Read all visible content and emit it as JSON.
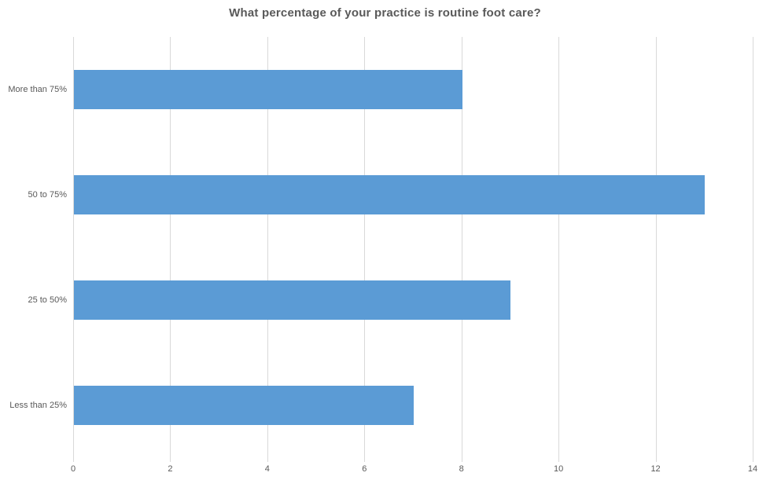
{
  "colors": {
    "bar": "#5b9bd5",
    "gridline": "#d9d9d9",
    "axis": "#d9d9d9",
    "title_text": "#595959",
    "label_text": "#595959"
  },
  "chart_data": {
    "type": "bar",
    "orientation": "horizontal",
    "title": "What percentage of your practice is routine foot care?",
    "categories": [
      "More than 75%",
      "50 to 75%",
      "25 to 50%",
      "Less than 25%"
    ],
    "values": [
      8,
      13,
      9,
      7
    ],
    "xlabel": "",
    "ylabel": "",
    "xlim": [
      0,
      14
    ],
    "xticks": [
      0,
      2,
      4,
      6,
      8,
      10,
      12,
      14
    ],
    "grid": true,
    "legend": false,
    "gap_ratio": 1.7
  }
}
